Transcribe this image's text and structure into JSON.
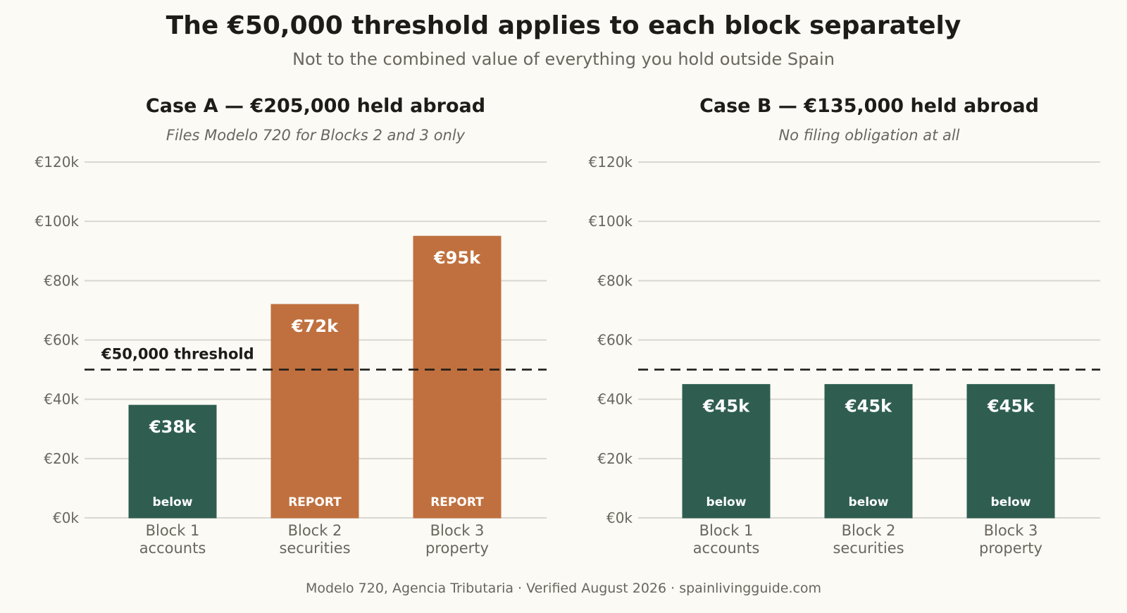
{
  "title": "The €50,000 threshold applies to each block separately",
  "subtitle": "Not to the combined value of everything you hold outside Spain",
  "footer": "Modelo 720, Agencia Tributaria · Verified August 2026 · spainlivingguide.com",
  "colors": {
    "below": "#2f5e51",
    "report": "#c0703e",
    "threshold_line": "#1e1c18",
    "grid": "#d9d7d0"
  },
  "chart_data": [
    {
      "type": "bar",
      "title": "Case A  —  €205,000 held abroad",
      "subtitle": "Files Modelo 720 for Blocks 2 and 3 only",
      "categories": [
        [
          "Block 1",
          "accounts"
        ],
        [
          "Block 2",
          "securities"
        ],
        [
          "Block 3",
          "property"
        ]
      ],
      "values": [
        38000,
        72000,
        95000
      ],
      "value_labels": [
        "€38k",
        "€72k",
        "€95k"
      ],
      "status": [
        "below",
        "REPORT",
        "REPORT"
      ],
      "threshold": 50000,
      "threshold_label": "€50,000 threshold",
      "ylim": [
        0,
        120000
      ],
      "yticks": [
        0,
        20000,
        40000,
        60000,
        80000,
        100000,
        120000
      ],
      "ytick_labels": [
        "€0k",
        "€20k",
        "€40k",
        "€60k",
        "€80k",
        "€100k",
        "€120k"
      ],
      "grid": true,
      "legend": "none"
    },
    {
      "type": "bar",
      "title": "Case B  —  €135,000 held abroad",
      "subtitle": "No filing obligation at all",
      "categories": [
        [
          "Block 1",
          "accounts"
        ],
        [
          "Block 2",
          "securities"
        ],
        [
          "Block 3",
          "property"
        ]
      ],
      "values": [
        45000,
        45000,
        45000
      ],
      "value_labels": [
        "€45k",
        "€45k",
        "€45k"
      ],
      "status": [
        "below",
        "below",
        "below"
      ],
      "threshold": 50000,
      "threshold_label": "",
      "ylim": [
        0,
        120000
      ],
      "yticks": [
        0,
        20000,
        40000,
        60000,
        80000,
        100000,
        120000
      ],
      "ytick_labels": [
        "€0k",
        "€20k",
        "€40k",
        "€60k",
        "€80k",
        "€100k",
        "€120k"
      ],
      "grid": true,
      "legend": "none"
    }
  ]
}
